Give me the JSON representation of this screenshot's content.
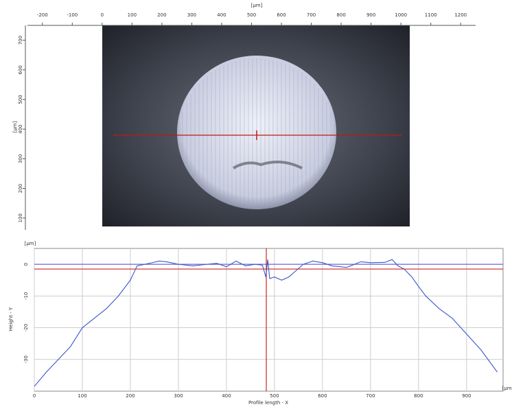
{
  "chart_data": [
    {
      "type": "image",
      "x_label": "[µm]",
      "y_label": "[µm]",
      "xlim": [
        -250,
        1250
      ],
      "xticks": [
        -200,
        -100,
        0,
        100,
        200,
        300,
        400,
        500,
        600,
        700,
        800,
        900,
        1000,
        1100,
        1200
      ],
      "ylim": [
        60,
        750
      ],
      "yticks": [
        700,
        600,
        500,
        400,
        300,
        200,
        100
      ]
    },
    {
      "type": "line",
      "x_label": "Profile length - X",
      "y_label": "Height - Y",
      "x_unit": "[µm]",
      "y_unit": "[µm]",
      "xlim": [
        0,
        976
      ],
      "xticks": [
        0,
        100,
        200,
        300,
        400,
        500,
        600,
        700,
        800,
        900
      ],
      "ylim": [
        -40,
        5
      ],
      "yticks": [
        0,
        -10,
        -20,
        -30
      ],
      "grid": true,
      "h_lines": [
        {
          "value": 0,
          "color": "#6a6ad8"
        },
        {
          "value": -1.5,
          "color": "#d02020"
        }
      ],
      "v_line": {
        "value": 483,
        "color": "#d02020"
      },
      "series": [
        {
          "color": "#3b55c8",
          "x": [
            0,
            25,
            50,
            75,
            100,
            125,
            150,
            175,
            200,
            214,
            240,
            260,
            275,
            300,
            330,
            360,
            380,
            400,
            420,
            440,
            460,
            475,
            482,
            486,
            490,
            500,
            515,
            530,
            545,
            560,
            580,
            600,
            620,
            650,
            680,
            700,
            730,
            745,
            757,
            770,
            786,
            800,
            815,
            843,
            870,
            900,
            930,
            964
          ],
          "values": [
            -38.5,
            -34,
            -30,
            -26,
            -20,
            -17,
            -14,
            -10,
            -5,
            -0.5,
            0.3,
            1,
            0.8,
            0,
            -0.5,
            0,
            0.3,
            -0.8,
            1,
            -0.5,
            0,
            -0.3,
            -4,
            1.5,
            -4.5,
            -4,
            -5,
            -4,
            -2,
            0,
            1,
            0.5,
            -0.5,
            -1,
            0.8,
            0.5,
            0.6,
            1.5,
            -0.5,
            -1.5,
            -4,
            -7,
            -10,
            -14,
            -17,
            -22,
            -27,
            -34
          ]
        }
      ]
    }
  ]
}
